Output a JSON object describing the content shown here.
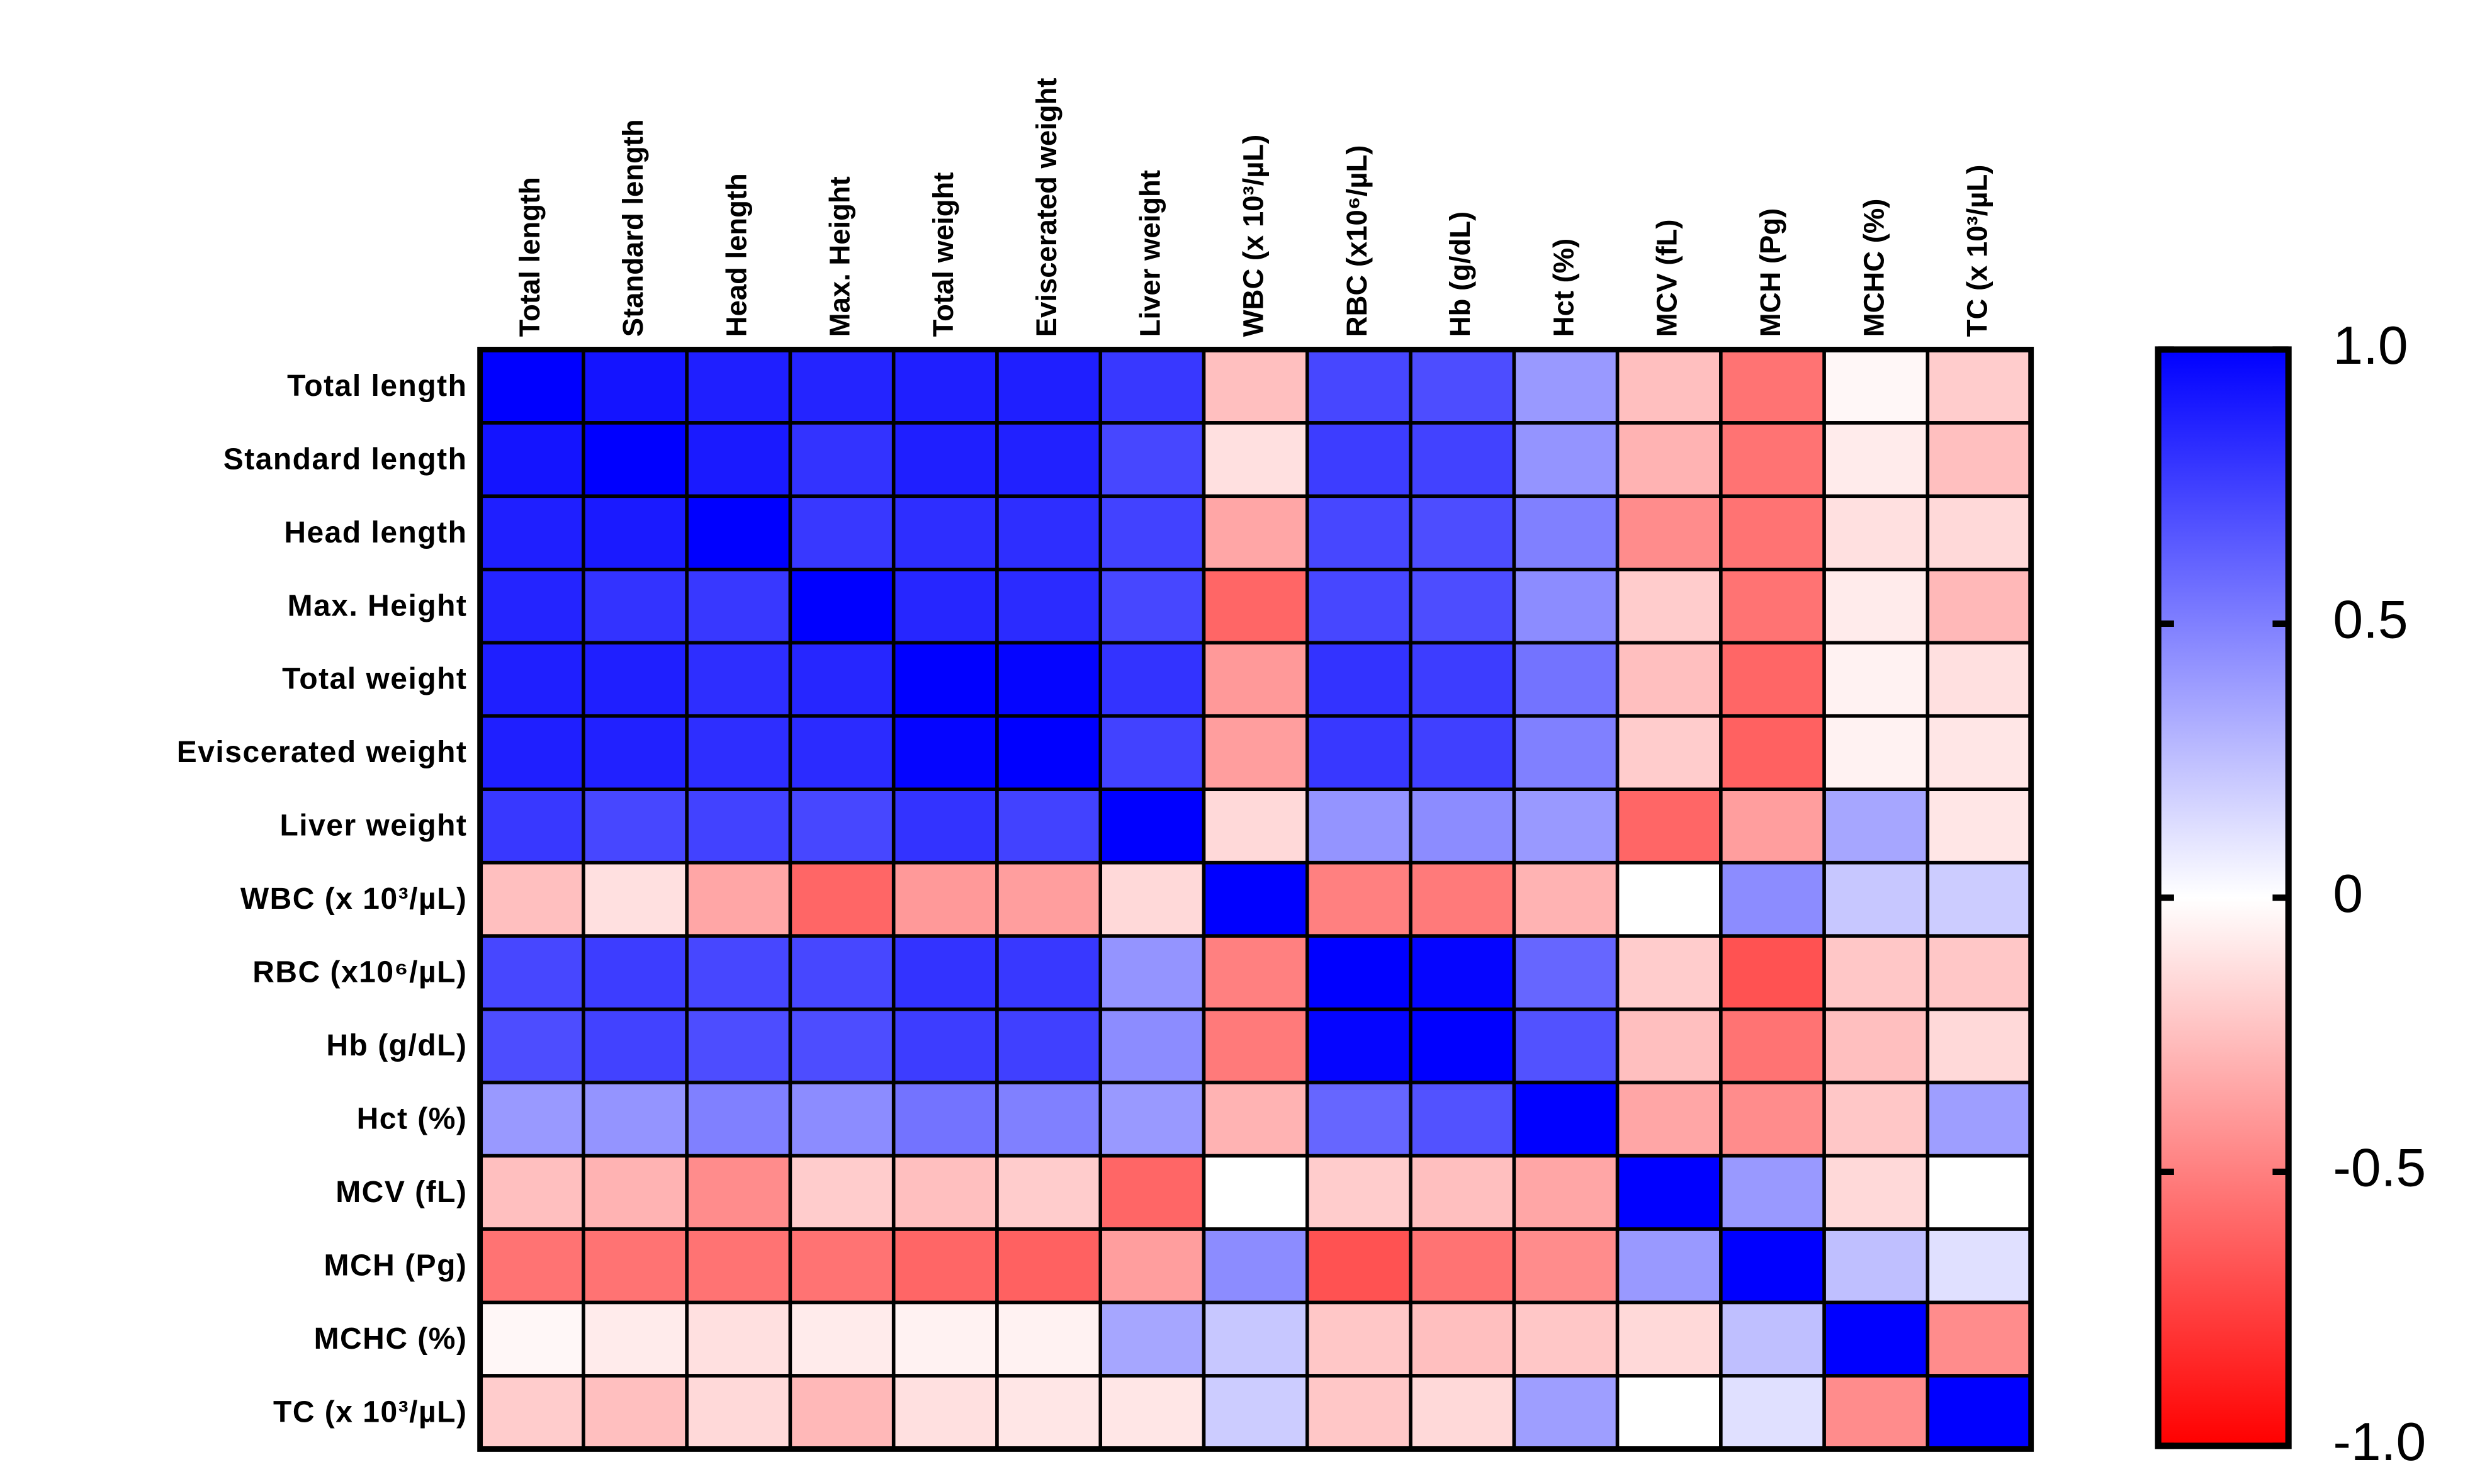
{
  "chart_data": {
    "type": "heatmap",
    "x": [
      "Total length",
      "Standard length",
      "Head length",
      "Max. Height",
      "Total weight",
      "Eviscerated weight",
      "Liver weight",
      "WBC (x 10³/µL)",
      "RBC (x10⁶/µL)",
      "Hb (g/dL)",
      "Hct (%)",
      "MCV (fL)",
      "MCH (Pg)",
      "MCHC (%)",
      "TC (x 10³/µL)"
    ],
    "y": [
      "Total length",
      "Standard length",
      "Head length",
      "Max. Height",
      "Total weight",
      "Eviscerated weight",
      "Liver weight",
      "WBC (x 10³/µL)",
      "RBC (x10⁶/µL)",
      "Hb (g/dL)",
      "Hct (%)",
      "MCV (fL)",
      "MCH (Pg)",
      "MCHC (%)",
      "TC (x 10³/µL)"
    ],
    "values": [
      [
        1,
        0.92,
        0.88,
        0.86,
        0.88,
        0.88,
        0.78,
        -0.25,
        0.72,
        0.7,
        0.4,
        -0.25,
        -0.55,
        -0.03,
        -0.2
      ],
      [
        0.92,
        1,
        0.9,
        0.8,
        0.88,
        0.87,
        0.72,
        -0.12,
        0.76,
        0.74,
        0.42,
        -0.3,
        -0.55,
        -0.08,
        -0.25
      ],
      [
        0.88,
        0.9,
        1,
        0.78,
        0.82,
        0.82,
        0.74,
        -0.35,
        0.72,
        0.7,
        0.5,
        -0.45,
        -0.55,
        -0.12,
        -0.15
      ],
      [
        0.86,
        0.8,
        0.78,
        1,
        0.85,
        0.83,
        0.72,
        -0.6,
        0.72,
        0.7,
        0.45,
        -0.2,
        -0.55,
        -0.08,
        -0.28
      ],
      [
        0.88,
        0.88,
        0.82,
        0.85,
        1,
        0.98,
        0.8,
        -0.4,
        0.8,
        0.76,
        0.55,
        -0.25,
        -0.6,
        -0.05,
        -0.12
      ],
      [
        0.88,
        0.87,
        0.82,
        0.83,
        0.98,
        1,
        0.74,
        -0.38,
        0.78,
        0.75,
        0.5,
        -0.2,
        -0.62,
        -0.05,
        -0.1
      ],
      [
        0.78,
        0.72,
        0.74,
        0.72,
        0.8,
        0.74,
        1,
        -0.15,
        0.42,
        0.45,
        0.4,
        -0.6,
        -0.38,
        0.35,
        -0.1
      ],
      [
        -0.25,
        -0.12,
        -0.35,
        -0.6,
        -0.4,
        -0.38,
        -0.15,
        1,
        -0.5,
        -0.52,
        -0.3,
        0,
        0.45,
        0.22,
        0.2
      ],
      [
        0.72,
        0.76,
        0.72,
        0.72,
        0.8,
        0.78,
        0.42,
        -0.5,
        1,
        0.98,
        0.6,
        -0.2,
        -0.68,
        -0.22,
        -0.22
      ],
      [
        0.7,
        0.74,
        0.7,
        0.7,
        0.76,
        0.75,
        0.45,
        -0.52,
        0.98,
        1,
        0.68,
        -0.25,
        -0.55,
        -0.25,
        -0.15
      ],
      [
        0.4,
        0.42,
        0.5,
        0.45,
        0.55,
        0.5,
        0.4,
        -0.3,
        0.6,
        0.68,
        1,
        -0.35,
        -0.45,
        -0.22,
        0.38
      ],
      [
        -0.25,
        -0.3,
        -0.45,
        -0.2,
        -0.25,
        -0.2,
        -0.6,
        0,
        -0.2,
        -0.25,
        -0.35,
        1,
        0.4,
        -0.15,
        0
      ],
      [
        -0.55,
        -0.55,
        -0.55,
        -0.55,
        -0.6,
        -0.62,
        -0.38,
        0.45,
        -0.68,
        -0.55,
        -0.45,
        0.4,
        1,
        0.25,
        0.12
      ],
      [
        -0.03,
        -0.08,
        -0.12,
        -0.08,
        -0.05,
        -0.05,
        0.35,
        0.22,
        -0.22,
        -0.25,
        -0.22,
        -0.15,
        0.25,
        1,
        -0.45
      ],
      [
        -0.2,
        -0.25,
        -0.15,
        -0.28,
        -0.12,
        -0.1,
        -0.1,
        0.2,
        -0.22,
        -0.15,
        0.38,
        0,
        0.12,
        -0.45,
        1
      ]
    ],
    "colors": [
      "#ff0000",
      "#ffffff",
      "#0000ff"
    ],
    "zlim": [
      -1,
      1
    ],
    "zticks": [
      {
        "value": 1,
        "label": "1.0"
      },
      0.5,
      0,
      -0.5,
      {
        "value": -1,
        "label": "-1.0"
      }
    ]
  }
}
